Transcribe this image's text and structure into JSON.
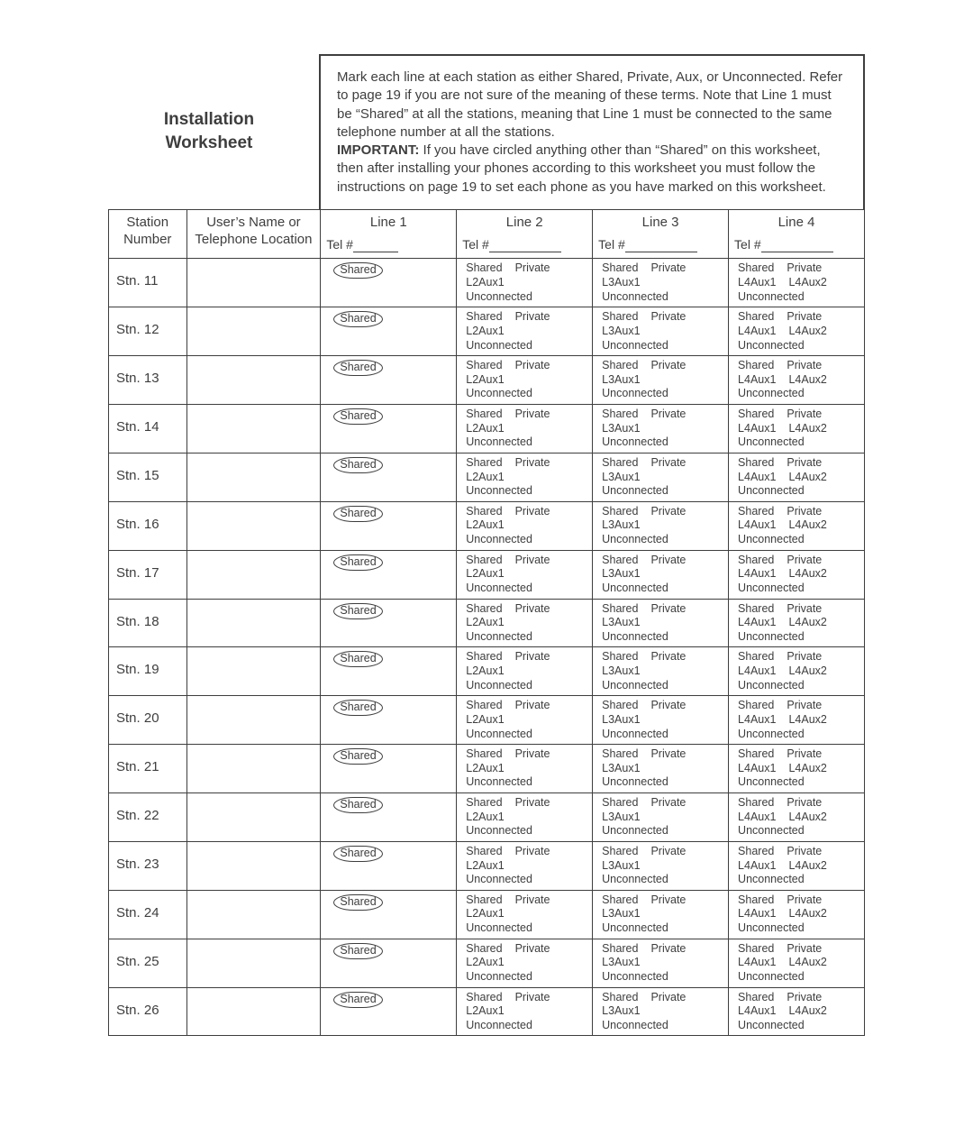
{
  "title_line1": "Installation",
  "title_line2": "Worksheet",
  "instructions_part1": "Mark each line at each station as either Shared, Private, Aux, or Unconnected. Refer to page 19 if you are not sure of the meaning of these terms. Note that Line 1 must be “Shared” at all the stations, meaning that Line 1 must be connected to the same telephone number at all the stations.",
  "instructions_important_label": "IMPORTANT:",
  "instructions_part2": " If you have circled anything other than “Shared” on this worksheet, then after installing your phones according to this worksheet you must follow the instructions on page 19 to set each phone as you have marked on this worksheet.",
  "headers": {
    "station_number": "Station Number",
    "user_name": "User’s Name or Telephone Location",
    "line1": "Line 1",
    "line2": "Line 2",
    "line3": "Line 3",
    "line4": "Line 4",
    "tel_prefix": "Tel #"
  },
  "options": {
    "shared": "Shared",
    "private": "Private",
    "unconnected": "Unconnected",
    "l2aux1": "L2Aux1",
    "l3aux1": "L3Aux1",
    "l4aux1": "L4Aux1",
    "l4aux2": "L4Aux2"
  },
  "stations": [
    "Stn. 11",
    "Stn. 12",
    "Stn. 13",
    "Stn. 14",
    "Stn. 15",
    "Stn. 16",
    "Stn. 17",
    "Stn. 18",
    "Stn. 19",
    "Stn. 20",
    "Stn. 21",
    "Stn. 22",
    "Stn. 23",
    "Stn. 24",
    "Stn. 25",
    "Stn. 26"
  ],
  "colors": {
    "text": "#3e3e3e",
    "border": "#3e3e3e",
    "background": "#ffffff"
  }
}
